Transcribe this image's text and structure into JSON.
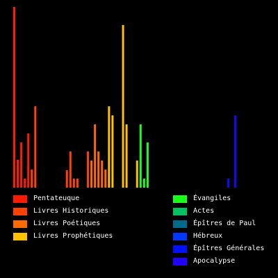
{
  "chart_data": {
    "type": "bar",
    "title": "",
    "xlabel": "",
    "ylabel": "",
    "ylim": [
      0,
      260
    ],
    "series": [
      {
        "name": "Pentateuque",
        "color": "#ff1a00",
        "values": [
          260,
          40,
          65,
          13,
          78
        ]
      },
      {
        "name": "Livres Historiques",
        "color": "#ff4200",
        "values": [
          26,
          117,
          0,
          0,
          0,
          0,
          0,
          0,
          0,
          0,
          25,
          52,
          13,
          13,
          0,
          0,
          52
        ]
      },
      {
        "name": "Livres Poétiques",
        "color": "#ff6a00",
        "values": [
          39,
          91,
          52,
          39,
          26
        ]
      },
      {
        "name": "Livres Prophétiques",
        "color": "#ffc000",
        "values": [
          117,
          104,
          0,
          0,
          234,
          91,
          0,
          0,
          39
        ]
      },
      {
        "name": "Évangiles",
        "color": "#1aff1a",
        "values": [
          91,
          13,
          65,
          0
        ]
      },
      {
        "name": "Actes",
        "color": "#00c060",
        "values": [
          0
        ]
      },
      {
        "name": "Épîtres de Paul",
        "color": "#006a8a",
        "values": [
          0,
          0,
          0,
          0,
          0,
          0,
          0,
          0,
          0,
          0,
          0,
          0,
          0,
          0
        ]
      },
      {
        "name": "Hébreux",
        "color": "#0038ff",
        "values": [
          0
        ]
      },
      {
        "name": "Épîtres Générales",
        "color": "#0010ff",
        "values": [
          0,
          0,
          0,
          0,
          0,
          13,
          0
        ]
      },
      {
        "name": "Apocalypse",
        "color": "#2200ff",
        "values": [
          104
        ]
      }
    ],
    "legend_placement": "bottom",
    "grid": false
  }
}
